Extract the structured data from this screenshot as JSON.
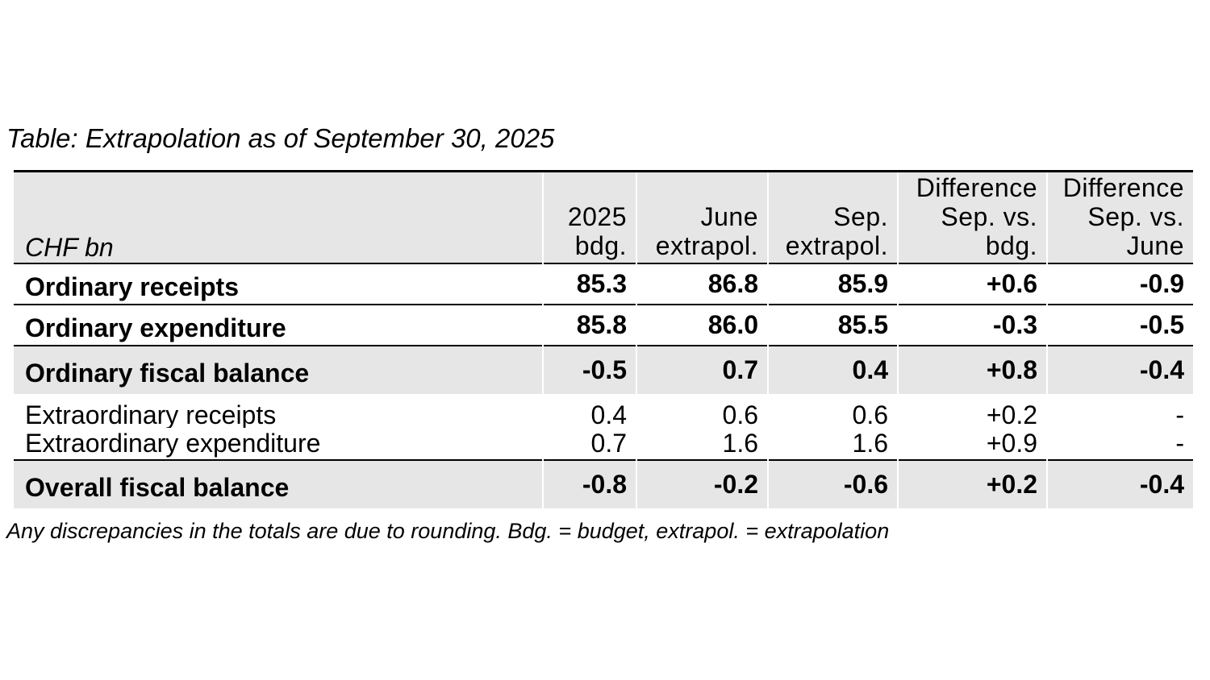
{
  "caption": "Table: Extrapolation as of September 30, 2025",
  "footnote": "Any discrepancies in the totals are due to rounding. Bdg. = budget, extrapol. = extrapolation",
  "table": {
    "unit_label": "CHF bn",
    "columns": [
      {
        "lines": [
          "2025",
          "bdg."
        ]
      },
      {
        "lines": [
          "June",
          "extrapol."
        ]
      },
      {
        "lines": [
          "Sep.",
          "extrapol."
        ]
      },
      {
        "lines": [
          "Difference",
          "Sep. vs.",
          "bdg."
        ]
      },
      {
        "lines": [
          "Difference",
          "Sep. vs.",
          "June"
        ]
      }
    ],
    "rows": [
      {
        "label": "Ordinary receipts",
        "values": [
          "85.3",
          "86.8",
          "85.9",
          "+0.6",
          "-0.9"
        ]
      },
      {
        "label": "Ordinary expenditure",
        "values": [
          "85.8",
          "86.0",
          "85.5",
          "-0.3",
          "-0.5"
        ]
      },
      {
        "label": "Ordinary fiscal balance",
        "values": [
          "-0.5",
          "0.7",
          "0.4",
          "+0.8",
          "-0.4"
        ]
      },
      {
        "label": "Extraordinary receipts",
        "values": [
          "0.4",
          "0.6",
          "0.6",
          "+0.2",
          "-"
        ]
      },
      {
        "label": "Extraordinary expenditure",
        "values": [
          "0.7",
          "1.6",
          "1.6",
          "+0.9",
          "-"
        ]
      },
      {
        "label": "Overall fiscal balance",
        "values": [
          "-0.8",
          "-0.2",
          "-0.6",
          "+0.2",
          "-0.4"
        ]
      }
    ]
  },
  "colors": {
    "shade": "#e6e6e6",
    "rule": "#000000"
  }
}
